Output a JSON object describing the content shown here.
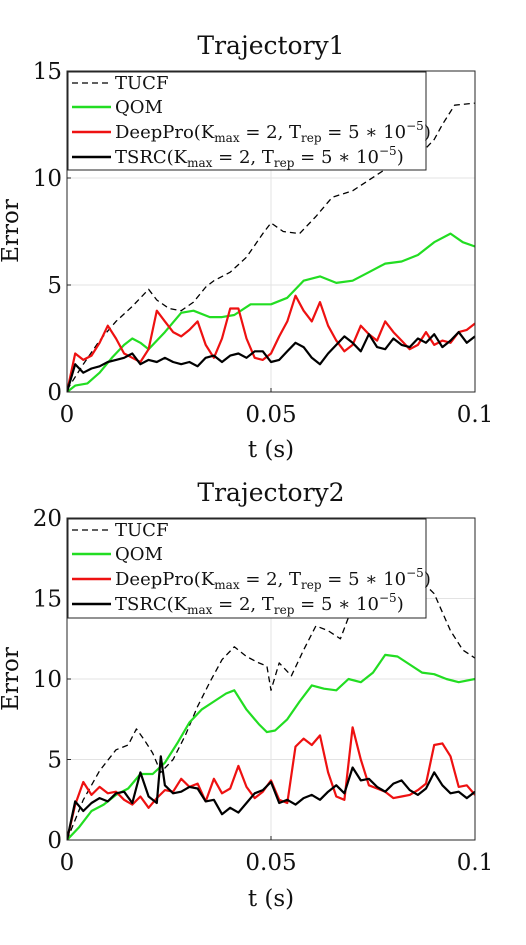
{
  "chart_data": [
    {
      "type": "line",
      "title": "Trajectory1",
      "xlabel": "t (s)",
      "ylabel": "Error",
      "xlim": [
        0,
        0.1
      ],
      "ylim": [
        0,
        15
      ],
      "xticks": [
        0,
        0.05,
        0.1
      ],
      "xtick_labels": [
        "0",
        "0.05",
        "0.1"
      ],
      "yticks": [
        0,
        5,
        10,
        15
      ],
      "ytick_labels": [
        "0",
        "5",
        "10",
        "15"
      ],
      "grid": true,
      "legend_position": "top-left",
      "series": [
        {
          "name": "TUCF",
          "legend": {
            "main": "TUCF",
            "sub": ""
          },
          "color": "#000000",
          "style": "dashed",
          "x": [
            0,
            0.004,
            0.008,
            0.012,
            0.016,
            0.02,
            0.022,
            0.025,
            0.028,
            0.031,
            0.034,
            0.036,
            0.04,
            0.044,
            0.048,
            0.05,
            0.053,
            0.057,
            0.061,
            0.065,
            0.07,
            0.074,
            0.078,
            0.082,
            0.087,
            0.09,
            0.092,
            0.095,
            0.1
          ],
          "y": [
            0.1,
            1.3,
            2.4,
            3.3,
            4.0,
            4.8,
            4.3,
            3.9,
            3.8,
            4.2,
            4.9,
            5.2,
            5.6,
            6.3,
            7.4,
            7.9,
            7.5,
            7.4,
            8.2,
            9.1,
            9.4,
            9.9,
            10.4,
            11.2,
            11.2,
            11.8,
            12.5,
            13.4,
            13.5
          ]
        },
        {
          "name": "QOM",
          "legend": {
            "main": "QOM",
            "sub": ""
          },
          "color": "#22dd22",
          "style": "solid",
          "x": [
            0,
            0.002,
            0.005,
            0.008,
            0.011,
            0.014,
            0.016,
            0.018,
            0.02,
            0.024,
            0.028,
            0.031,
            0.035,
            0.038,
            0.041,
            0.045,
            0.05,
            0.054,
            0.058,
            0.062,
            0.066,
            0.07,
            0.074,
            0.078,
            0.082,
            0.086,
            0.09,
            0.094,
            0.097,
            0.1
          ],
          "y": [
            0,
            0.3,
            0.4,
            0.9,
            1.6,
            2.2,
            2.5,
            2.3,
            2.0,
            2.8,
            3.7,
            3.8,
            3.5,
            3.5,
            3.6,
            4.1,
            4.1,
            4.4,
            5.2,
            5.4,
            5.1,
            5.2,
            5.6,
            6.0,
            6.1,
            6.4,
            7.0,
            7.4,
            7.0,
            6.8
          ]
        },
        {
          "name": "DeepPro",
          "legend": {
            "main": "DeepPro(K",
            "sub": "max",
            "mid": " = 2, T",
            "sub2": "rep",
            "tail": " = 5 ∗ 10",
            "sup": "−5",
            "end": ")"
          },
          "color": "#ee1111",
          "style": "solid",
          "x": [
            0,
            0.002,
            0.004,
            0.006,
            0.008,
            0.01,
            0.012,
            0.014,
            0.016,
            0.018,
            0.02,
            0.022,
            0.024,
            0.026,
            0.028,
            0.03,
            0.032,
            0.034,
            0.036,
            0.038,
            0.04,
            0.042,
            0.044,
            0.046,
            0.048,
            0.05,
            0.052,
            0.054,
            0.056,
            0.058,
            0.06,
            0.062,
            0.064,
            0.066,
            0.068,
            0.07,
            0.072,
            0.074,
            0.076,
            0.078,
            0.08,
            0.082,
            0.084,
            0.086,
            0.088,
            0.09,
            0.092,
            0.094,
            0.096,
            0.098,
            0.1
          ],
          "y": [
            0,
            1.8,
            1.5,
            1.7,
            2.3,
            3.1,
            2.5,
            1.8,
            1.6,
            1.4,
            2.0,
            3.8,
            3.3,
            2.8,
            2.6,
            2.9,
            3.3,
            2.2,
            1.6,
            2.5,
            3.9,
            3.9,
            2.5,
            1.6,
            1.5,
            1.8,
            2.6,
            3.3,
            4.5,
            3.8,
            3.3,
            4.2,
            3.1,
            2.4,
            1.9,
            2.2,
            3.1,
            2.7,
            2.4,
            3.3,
            2.8,
            2.4,
            2.0,
            2.2,
            2.8,
            2.2,
            2.4,
            2.3,
            2.8,
            2.9,
            3.2
          ]
        },
        {
          "name": "TSRC",
          "legend": {
            "main": "TSRC(K",
            "sub": "max",
            "mid": " = 2, T",
            "sub2": "rep",
            "tail": " = 5 ∗ 10",
            "sup": "−5",
            "end": ")"
          },
          "color": "#000000",
          "style": "solid",
          "x": [
            0,
            0.002,
            0.004,
            0.006,
            0.008,
            0.01,
            0.012,
            0.014,
            0.016,
            0.018,
            0.02,
            0.022,
            0.024,
            0.026,
            0.028,
            0.03,
            0.032,
            0.034,
            0.036,
            0.038,
            0.04,
            0.042,
            0.044,
            0.046,
            0.048,
            0.05,
            0.052,
            0.054,
            0.056,
            0.058,
            0.06,
            0.062,
            0.064,
            0.066,
            0.068,
            0.07,
            0.072,
            0.074,
            0.076,
            0.078,
            0.08,
            0.082,
            0.084,
            0.086,
            0.088,
            0.09,
            0.092,
            0.094,
            0.096,
            0.098,
            0.1
          ],
          "y": [
            0,
            1.3,
            0.9,
            1.1,
            1.2,
            1.4,
            1.5,
            1.6,
            1.8,
            1.3,
            1.5,
            1.4,
            1.6,
            1.4,
            1.3,
            1.4,
            1.2,
            1.6,
            1.7,
            1.4,
            1.7,
            1.8,
            1.6,
            1.9,
            1.9,
            1.4,
            1.5,
            1.9,
            2.3,
            2.1,
            1.6,
            1.3,
            1.8,
            2.2,
            2.6,
            2.3,
            1.9,
            2.7,
            2.1,
            2.0,
            2.5,
            2.2,
            2.1,
            2.5,
            2.3,
            2.7,
            2.1,
            2.4,
            2.8,
            2.3,
            2.6
          ]
        }
      ]
    },
    {
      "type": "line",
      "title": "Trajectory2",
      "xlabel": "t (s)",
      "ylabel": "Error",
      "xlim": [
        0,
        0.1
      ],
      "ylim": [
        0,
        20
      ],
      "xticks": [
        0,
        0.05,
        0.1
      ],
      "xtick_labels": [
        "0",
        "0.05",
        "0.1"
      ],
      "yticks": [
        0,
        5,
        10,
        15,
        20
      ],
      "ytick_labels": [
        "0",
        "5",
        "10",
        "15",
        "20"
      ],
      "grid": true,
      "legend_position": "top-left",
      "series": [
        {
          "name": "TUCF",
          "legend": {
            "main": "TUCF",
            "sub": ""
          },
          "color": "#000000",
          "style": "dashed",
          "x": [
            0,
            0.004,
            0.008,
            0.012,
            0.015,
            0.017,
            0.019,
            0.021,
            0.023,
            0.026,
            0.029,
            0.032,
            0.035,
            0.038,
            0.041,
            0.044,
            0.047,
            0.049,
            0.05,
            0.052,
            0.055,
            0.058,
            0.061,
            0.064,
            0.067,
            0.07,
            0.074,
            0.078,
            0.082,
            0.086,
            0.09,
            0.094,
            0.097,
            0.1
          ],
          "y": [
            0,
            2.5,
            4.3,
            5.6,
            5.9,
            6.9,
            6.2,
            5.4,
            4.2,
            5.0,
            6.5,
            8.3,
            9.8,
            11.2,
            12.0,
            11.4,
            11.0,
            10.8,
            9.3,
            11.0,
            10.2,
            11.8,
            13.3,
            13.0,
            12.5,
            14.5,
            17.5,
            19.0,
            17.8,
            16.3,
            15.3,
            13.0,
            11.8,
            11.3
          ]
        },
        {
          "name": "QOM",
          "legend": {
            "main": "QOM",
            "sub": ""
          },
          "color": "#22dd22",
          "style": "solid",
          "x": [
            0,
            0.003,
            0.006,
            0.009,
            0.012,
            0.015,
            0.018,
            0.021,
            0.024,
            0.027,
            0.03,
            0.033,
            0.036,
            0.039,
            0.041,
            0.044,
            0.047,
            0.049,
            0.051,
            0.054,
            0.057,
            0.06,
            0.063,
            0.066,
            0.069,
            0.072,
            0.075,
            0.078,
            0.081,
            0.084,
            0.087,
            0.09,
            0.093,
            0.096,
            0.1
          ],
          "y": [
            0,
            0.8,
            1.8,
            2.2,
            2.8,
            3.2,
            4.1,
            4.1,
            4.8,
            6.0,
            7.3,
            8.1,
            8.6,
            9.1,
            9.3,
            8.1,
            7.2,
            6.7,
            6.8,
            7.5,
            8.6,
            9.6,
            9.4,
            9.3,
            10.0,
            9.8,
            10.4,
            11.5,
            11.4,
            10.9,
            10.4,
            10.3,
            10.0,
            9.8,
            10.0
          ]
        },
        {
          "name": "DeepPro",
          "legend": {
            "main": "DeepPro(K",
            "sub": "max",
            "mid": " = 2, T",
            "sub2": "rep",
            "tail": " = 5 ∗ 10",
            "sup": "−5",
            "end": ")"
          },
          "color": "#ee1111",
          "style": "solid",
          "x": [
            0,
            0.002,
            0.004,
            0.006,
            0.008,
            0.01,
            0.012,
            0.014,
            0.016,
            0.018,
            0.02,
            0.022,
            0.024,
            0.026,
            0.028,
            0.03,
            0.032,
            0.034,
            0.036,
            0.038,
            0.04,
            0.042,
            0.044,
            0.046,
            0.048,
            0.05,
            0.052,
            0.054,
            0.056,
            0.058,
            0.06,
            0.062,
            0.064,
            0.066,
            0.068,
            0.07,
            0.072,
            0.074,
            0.076,
            0.078,
            0.08,
            0.082,
            0.084,
            0.086,
            0.088,
            0.09,
            0.092,
            0.094,
            0.096,
            0.098,
            0.1
          ],
          "y": [
            0,
            2.2,
            3.6,
            2.8,
            3.3,
            2.9,
            3.0,
            2.5,
            2.2,
            2.7,
            2.0,
            2.6,
            3.1,
            3.0,
            3.8,
            3.3,
            3.5,
            2.4,
            3.8,
            2.9,
            3.2,
            4.6,
            3.3,
            2.6,
            3.0,
            3.7,
            2.5,
            2.3,
            5.8,
            6.3,
            5.9,
            6.5,
            4.2,
            2.7,
            2.5,
            7.0,
            5.0,
            3.4,
            3.2,
            3.0,
            2.6,
            2.7,
            2.8,
            3.1,
            3.5,
            5.9,
            6.0,
            5.2,
            3.3,
            3.4,
            2.8
          ]
        },
        {
          "name": "TSRC",
          "legend": {
            "main": "TSRC(K",
            "sub": "max",
            "mid": " = 2, T",
            "sub2": "rep",
            "tail": " = 5 ∗ 10",
            "sup": "−5",
            "end": ")"
          },
          "color": "#000000",
          "style": "solid",
          "x": [
            0,
            0.002,
            0.004,
            0.006,
            0.008,
            0.01,
            0.012,
            0.014,
            0.016,
            0.018,
            0.02,
            0.022,
            0.023,
            0.024,
            0.026,
            0.028,
            0.03,
            0.032,
            0.034,
            0.036,
            0.038,
            0.04,
            0.042,
            0.044,
            0.046,
            0.048,
            0.05,
            0.052,
            0.054,
            0.056,
            0.058,
            0.06,
            0.062,
            0.064,
            0.066,
            0.068,
            0.07,
            0.072,
            0.074,
            0.076,
            0.078,
            0.08,
            0.082,
            0.084,
            0.086,
            0.088,
            0.09,
            0.092,
            0.094,
            0.096,
            0.098,
            0.1
          ],
          "y": [
            0,
            2.4,
            1.8,
            2.3,
            2.6,
            2.4,
            2.9,
            3.0,
            2.3,
            4.2,
            2.7,
            2.3,
            5.2,
            3.4,
            2.9,
            3.0,
            3.3,
            3.2,
            2.4,
            2.5,
            1.6,
            2.0,
            1.7,
            2.3,
            2.9,
            3.1,
            3.6,
            2.3,
            2.5,
            2.2,
            2.6,
            2.8,
            2.5,
            3.0,
            3.4,
            2.9,
            4.5,
            3.7,
            3.8,
            3.3,
            3.0,
            3.5,
            3.7,
            3.1,
            2.8,
            3.2,
            4.2,
            3.4,
            2.9,
            3.0,
            2.6,
            3.0
          ]
        }
      ]
    }
  ]
}
